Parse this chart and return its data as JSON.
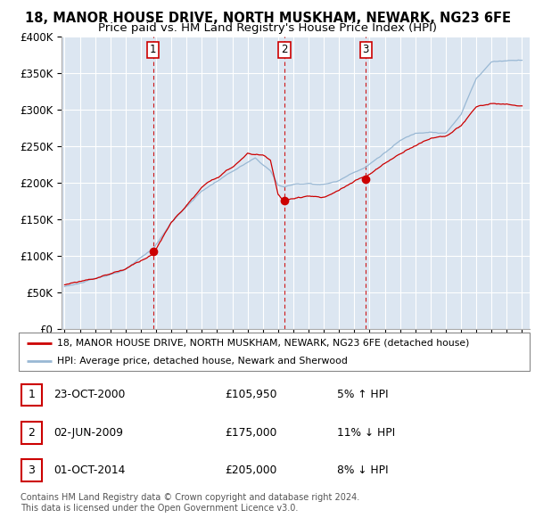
{
  "title": "18, MANOR HOUSE DRIVE, NORTH MUSKHAM, NEWARK, NG23 6FE",
  "subtitle": "Price paid vs. HM Land Registry's House Price Index (HPI)",
  "ylim": [
    0,
    400000
  ],
  "yticks": [
    0,
    50000,
    100000,
    150000,
    200000,
    250000,
    300000,
    350000,
    400000
  ],
  "ytick_labels": [
    "£0",
    "£50K",
    "£100K",
    "£150K",
    "£200K",
    "£250K",
    "£300K",
    "£350K",
    "£400K"
  ],
  "x_start_year": 1995,
  "x_end_year": 2025,
  "transaction_color": "#cc0000",
  "hpi_color": "#99b8d4",
  "transactions": [
    {
      "date_num": 2000.81,
      "price": 105950,
      "label": "1"
    },
    {
      "date_num": 2009.42,
      "price": 175000,
      "label": "2"
    },
    {
      "date_num": 2014.75,
      "price": 205000,
      "label": "3"
    }
  ],
  "vline_dates": [
    2000.81,
    2009.42,
    2014.75
  ],
  "legend_property_label": "18, MANOR HOUSE DRIVE, NORTH MUSKHAM, NEWARK, NG23 6FE (detached house)",
  "legend_hpi_label": "HPI: Average price, detached house, Newark and Sherwood",
  "table_rows": [
    {
      "num": "1",
      "date": "23-OCT-2000",
      "price": "£105,950",
      "change": "5% ↑ HPI"
    },
    {
      "num": "2",
      "date": "02-JUN-2009",
      "price": "£175,000",
      "change": "11% ↓ HPI"
    },
    {
      "num": "3",
      "date": "01-OCT-2014",
      "price": "£205,000",
      "change": "8% ↓ HPI"
    }
  ],
  "footnote": "Contains HM Land Registry data © Crown copyright and database right 2024.\nThis data is licensed under the Open Government Licence v3.0.",
  "background_color": "#dce6f1",
  "grid_color": "#ffffff",
  "title_fontsize": 10.5,
  "subtitle_fontsize": 9.5
}
